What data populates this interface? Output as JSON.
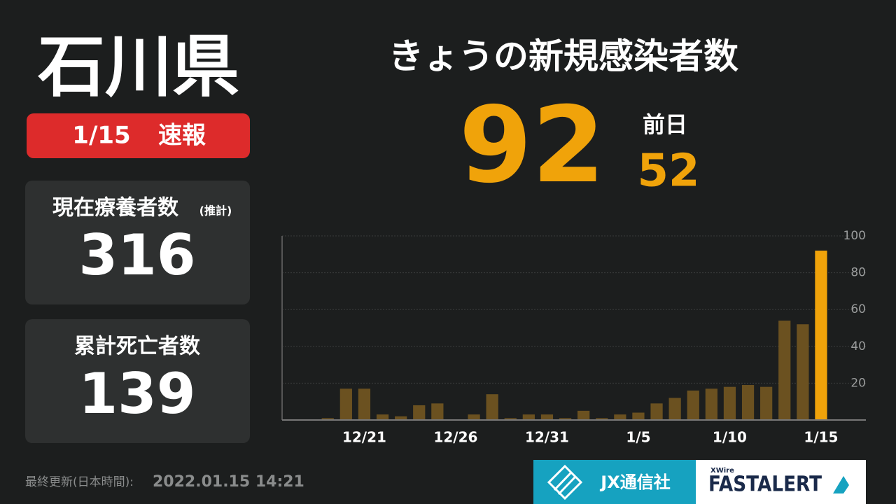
{
  "header": {
    "prefecture": "石川県",
    "date": "1/15",
    "badge": "速報"
  },
  "cards": [
    {
      "label": "現在療養者数",
      "note": "(推計)",
      "value": "316"
    },
    {
      "label": "累計死亡者数",
      "value": "139"
    }
  ],
  "today": {
    "label": "きょうの新規感染者数",
    "value": "92",
    "prev_label": "前日",
    "prev_value": "52"
  },
  "footer": {
    "updated_label": "最終更新(日本時間):",
    "updated": "2022.01.15 14:21"
  },
  "logos": {
    "jx": "JX通信社",
    "xwire": "XWire",
    "fastalert": "FASTALERT"
  },
  "chart_data": {
    "type": "bar",
    "categories": [
      null,
      null,
      null,
      null,
      "12/21",
      null,
      null,
      null,
      null,
      "12/26",
      null,
      null,
      null,
      null,
      "12/31",
      null,
      null,
      null,
      null,
      "1/5",
      null,
      null,
      null,
      null,
      "1/10",
      null,
      null,
      null,
      null,
      "1/15"
    ],
    "values": [
      0,
      0,
      1,
      17,
      17,
      3,
      2,
      8,
      9,
      0,
      3,
      14,
      1,
      3,
      3,
      1,
      5,
      1,
      3,
      4,
      9,
      12,
      16,
      17,
      18,
      19,
      18,
      54,
      52,
      92
    ],
    "color": "#6b5120",
    "highlight_color": "#f0a30a",
    "ylim": [
      0,
      100
    ],
    "yticks": [
      20,
      40,
      60,
      80,
      100
    ],
    "grid": true
  }
}
